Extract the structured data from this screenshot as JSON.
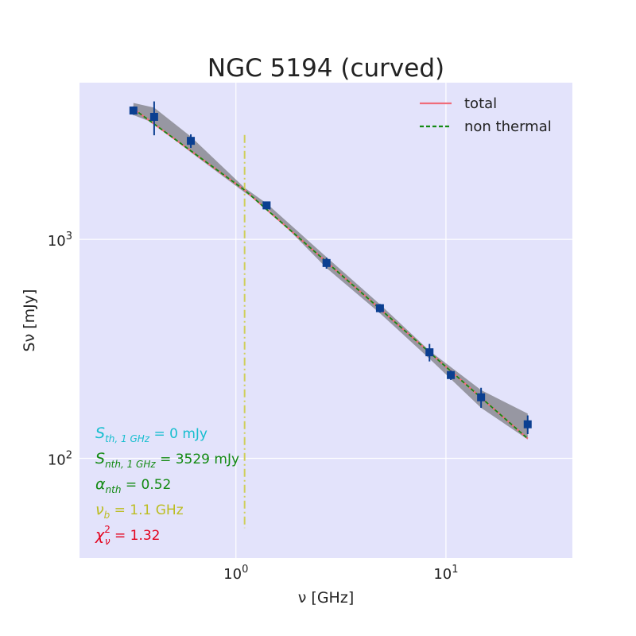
{
  "chart_data": {
    "type": "scatter",
    "title": "NGC 5194 (curved)",
    "xlabel": "ν [GHz]",
    "ylabel": "Sν [mJy]",
    "xscale": "log",
    "yscale": "log",
    "xlim": [
      0.18,
      40
    ],
    "ylim": [
      35,
      5200
    ],
    "grid": true,
    "background_color": "#e3e3fb",
    "x_ticks": [
      {
        "value": 1,
        "base": "10",
        "exp": "0"
      },
      {
        "value": 10,
        "base": "10",
        "exp": "1"
      }
    ],
    "y_ticks": [
      {
        "value": 100,
        "base": "10",
        "exp": "2"
      },
      {
        "value": 1000,
        "base": "10",
        "exp": "3"
      }
    ],
    "legend": {
      "position": "top-right",
      "entries": [
        {
          "label": "total",
          "color": "#f06c7a",
          "style": "solid"
        },
        {
          "label": "non thermal",
          "color": "#138a13",
          "style": "dashed"
        }
      ]
    },
    "series": [
      {
        "kind": "points",
        "marker": "square",
        "color": "#0b3f91",
        "x": [
          0.325,
          0.408,
          0.61,
          1.4,
          2.7,
          4.85,
          8.35,
          10.55,
          14.7,
          24.5
        ],
        "y": [
          3880,
          3630,
          2820,
          1430,
          780,
          485,
          305,
          240,
          190,
          143
        ],
        "yerr": [
          170,
          640,
          200,
          55,
          45,
          22,
          28,
          12,
          20,
          14
        ]
      },
      {
        "kind": "line",
        "label": "total",
        "color": "#f06c7a",
        "x": [
          0.325,
          1.1,
          24.5
        ],
        "y": [
          3950,
          1680,
          123
        ]
      },
      {
        "kind": "line",
        "label": "non thermal",
        "color": "#138a13",
        "x": [
          0.325,
          1.1,
          24.5
        ],
        "y": [
          3950,
          1680,
          123
        ]
      }
    ],
    "vline": {
      "x": 1.1,
      "y_range": [
        48,
        3000
      ],
      "color": "#cfcf5a",
      "style": "dashdot"
    },
    "uncertainty_band": {
      "color": "#5a5a5a",
      "x": [
        0.325,
        0.408,
        0.61,
        1.1,
        1.4,
        2.7,
        4.85,
        8.35,
        14.7,
        24.5
      ],
      "y_upper": [
        4200,
        4000,
        2950,
        1720,
        1460,
        830,
        505,
        310,
        205,
        160
      ],
      "y_lower": [
        3700,
        3400,
        2500,
        1640,
        1400,
        740,
        460,
        285,
        170,
        122
      ]
    },
    "annotations": [
      {
        "color": "#17becf",
        "sym": "S",
        "sub": "th, 1 GHz",
        "text": " = 0 mJy"
      },
      {
        "color": "#138a13",
        "sym": "S",
        "sub": "nth, 1 GHz",
        "text": " = 3529 mJy"
      },
      {
        "color": "#138a13",
        "sym": "α",
        "sub": "nth",
        "text": " = 0.52"
      },
      {
        "color": "#bcbd22",
        "sym": "ν",
        "sub": "b",
        "text": " = 1.1 GHz"
      },
      {
        "color": "#e3001b",
        "sym": "χ",
        "sub": "ν",
        "sup": "2",
        "text": " = 1.32"
      }
    ]
  }
}
